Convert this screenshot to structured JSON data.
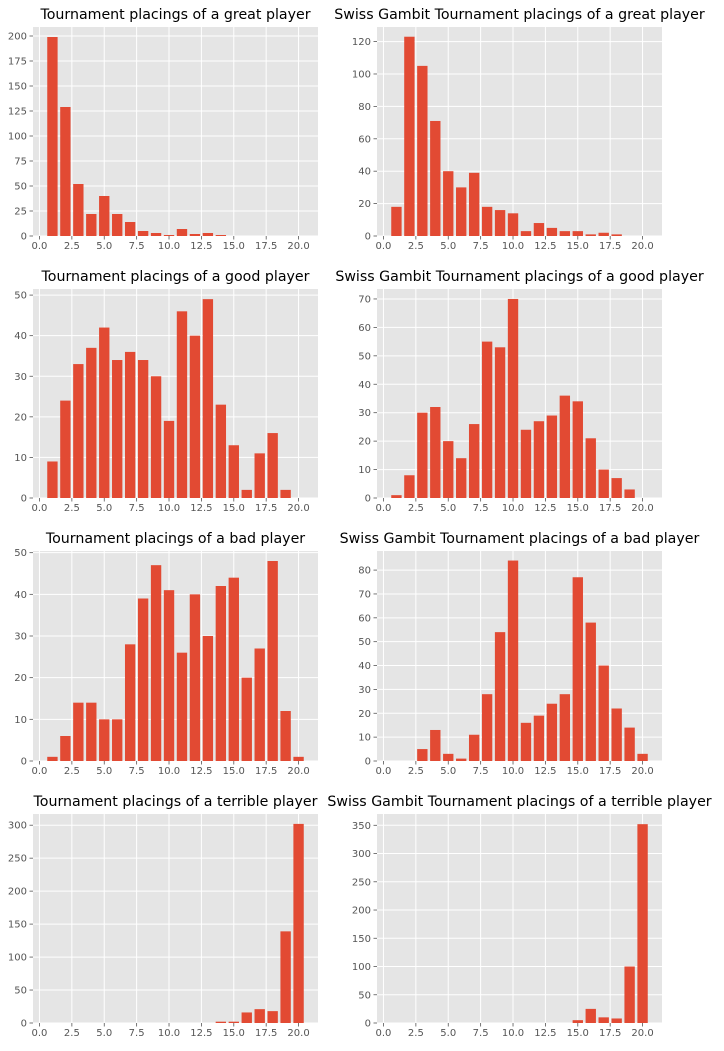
{
  "style": {
    "plot_bg": "#e5e5e5",
    "grid": "#ffffff",
    "bar": "#e24a33",
    "tick_text": "#555555",
    "title_text": "#000000"
  },
  "chart_data": [
    {
      "type": "bar",
      "title": "Tournament placings of a great player",
      "x": [
        1,
        2,
        3,
        4,
        5,
        6,
        7,
        8,
        9,
        10,
        11,
        12,
        13,
        14,
        15,
        16,
        17,
        18,
        19,
        20
      ],
      "values": [
        199,
        129,
        52,
        22,
        40,
        22,
        14,
        5,
        3,
        1,
        7,
        2,
        3,
        1,
        0,
        0,
        0,
        0,
        0,
        0
      ],
      "xlim": [
        -0.5,
        21.5
      ],
      "ylim": [
        0,
        209
      ],
      "xticks": [
        0,
        2.5,
        5,
        7.5,
        10,
        12.5,
        15,
        17.5,
        20
      ],
      "xtick_labels": [
        "0.0",
        "2.5",
        "5.0",
        "7.5",
        "10.0",
        "12.5",
        "15.0",
        "17.5",
        "20.0"
      ],
      "yticks": [
        0,
        25,
        50,
        75,
        100,
        125,
        150,
        175,
        200
      ],
      "ytick_labels": [
        "0",
        "25",
        "50",
        "75",
        "100",
        "125",
        "150",
        "175",
        "200"
      ],
      "grid": true
    },
    {
      "type": "bar",
      "title": "Swiss Gambit Tournament placings of a great player",
      "x": [
        1,
        2,
        3,
        4,
        5,
        6,
        7,
        8,
        9,
        10,
        11,
        12,
        13,
        14,
        15,
        16,
        17,
        18,
        19,
        20
      ],
      "values": [
        18,
        123,
        105,
        71,
        40,
        30,
        39,
        18,
        16,
        14,
        3,
        8,
        5,
        3,
        3,
        1,
        2,
        1,
        0,
        0
      ],
      "xlim": [
        -0.5,
        21.5
      ],
      "ylim": [
        0,
        129
      ],
      "xticks": [
        0,
        2.5,
        5,
        7.5,
        10,
        12.5,
        15,
        17.5,
        20
      ],
      "xtick_labels": [
        "0.0",
        "2.5",
        "5.0",
        "7.5",
        "10.0",
        "12.5",
        "15.0",
        "17.5",
        "20.0"
      ],
      "yticks": [
        0,
        20,
        40,
        60,
        80,
        100,
        120
      ],
      "ytick_labels": [
        "0",
        "20",
        "40",
        "60",
        "80",
        "100",
        "120"
      ],
      "grid": true
    },
    {
      "type": "bar",
      "title": "Tournament placings of a good player",
      "x": [
        1,
        2,
        3,
        4,
        5,
        6,
        7,
        8,
        9,
        10,
        11,
        12,
        13,
        14,
        15,
        16,
        17,
        18,
        19,
        20
      ],
      "values": [
        9,
        24,
        33,
        37,
        42,
        34,
        36,
        34,
        30,
        19,
        46,
        40,
        49,
        23,
        13,
        2,
        11,
        16,
        2,
        0
      ],
      "xlim": [
        -0.5,
        21.5
      ],
      "ylim": [
        0,
        51.5
      ],
      "xticks": [
        0,
        2.5,
        5,
        7.5,
        10,
        12.5,
        15,
        17.5,
        20
      ],
      "xtick_labels": [
        "0.0",
        "2.5",
        "5.0",
        "7.5",
        "10.0",
        "12.5",
        "15.0",
        "17.5",
        "20.0"
      ],
      "yticks": [
        0,
        10,
        20,
        30,
        40,
        50
      ],
      "ytick_labels": [
        "0",
        "10",
        "20",
        "30",
        "40",
        "50"
      ],
      "grid": true
    },
    {
      "type": "bar",
      "title": "Swiss Gambit Tournament placings of a good player",
      "x": [
        1,
        2,
        3,
        4,
        5,
        6,
        7,
        8,
        9,
        10,
        11,
        12,
        13,
        14,
        15,
        16,
        17,
        18,
        19,
        20
      ],
      "values": [
        1,
        8,
        30,
        32,
        20,
        14,
        26,
        55,
        53,
        70,
        24,
        27,
        29,
        36,
        34,
        21,
        10,
        7,
        3,
        0
      ],
      "xlim": [
        -0.5,
        21.5
      ],
      "ylim": [
        0,
        73.5
      ],
      "xticks": [
        0,
        2.5,
        5,
        7.5,
        10,
        12.5,
        15,
        17.5,
        20
      ],
      "xtick_labels": [
        "0.0",
        "2.5",
        "5.0",
        "7.5",
        "10.0",
        "12.5",
        "15.0",
        "17.5",
        "20.0"
      ],
      "yticks": [
        0,
        10,
        20,
        30,
        40,
        50,
        60,
        70
      ],
      "ytick_labels": [
        "0",
        "10",
        "20",
        "30",
        "40",
        "50",
        "60",
        "70"
      ],
      "grid": true
    },
    {
      "type": "bar",
      "title": "Tournament placings of a bad player",
      "x": [
        1,
        2,
        3,
        4,
        5,
        6,
        7,
        8,
        9,
        10,
        11,
        12,
        13,
        14,
        15,
        16,
        17,
        18,
        19,
        20
      ],
      "values": [
        1,
        6,
        14,
        14,
        10,
        10,
        28,
        39,
        47,
        41,
        26,
        40,
        30,
        42,
        44,
        20,
        27,
        48,
        12,
        1
      ],
      "xlim": [
        -0.5,
        21.5
      ],
      "ylim": [
        0,
        50.4
      ],
      "xticks": [
        0,
        2.5,
        5,
        7.5,
        10,
        12.5,
        15,
        17.5,
        20
      ],
      "xtick_labels": [
        "0.0",
        "2.5",
        "5.0",
        "7.5",
        "10.0",
        "12.5",
        "15.0",
        "17.5",
        "20.0"
      ],
      "yticks": [
        0,
        10,
        20,
        30,
        40,
        50
      ],
      "ytick_labels": [
        "0",
        "10",
        "20",
        "30",
        "40",
        "50"
      ],
      "grid": true
    },
    {
      "type": "bar",
      "title": "Swiss Gambit Tournament placings of a bad player",
      "x": [
        1,
        2,
        3,
        4,
        5,
        6,
        7,
        8,
        9,
        10,
        11,
        12,
        13,
        14,
        15,
        16,
        17,
        18,
        19,
        20
      ],
      "values": [
        0,
        0,
        5,
        13,
        3,
        1,
        11,
        28,
        54,
        84,
        16,
        19,
        24,
        28,
        77,
        58,
        40,
        22,
        14,
        3
      ],
      "xlim": [
        -0.5,
        21.5
      ],
      "ylim": [
        0,
        88
      ],
      "xticks": [
        0,
        2.5,
        5,
        7.5,
        10,
        12.5,
        15,
        17.5,
        20
      ],
      "xtick_labels": [
        "0.0",
        "2.5",
        "5.0",
        "7.5",
        "10.0",
        "12.5",
        "15.0",
        "17.5",
        "20.0"
      ],
      "yticks": [
        0,
        10,
        20,
        30,
        40,
        50,
        60,
        70,
        80
      ],
      "ytick_labels": [
        "0",
        "10",
        "20",
        "30",
        "40",
        "50",
        "60",
        "70",
        "80"
      ],
      "grid": true
    },
    {
      "type": "bar",
      "title": "Tournament placings of a terrible player",
      "x": [
        1,
        2,
        3,
        4,
        5,
        6,
        7,
        8,
        9,
        10,
        11,
        12,
        13,
        14,
        15,
        16,
        17,
        18,
        19,
        20
      ],
      "values": [
        0,
        0,
        0,
        0,
        0,
        0,
        0,
        0,
        0,
        0,
        0,
        0,
        0,
        2,
        2,
        16,
        21,
        18,
        139,
        302
      ],
      "xlim": [
        -0.5,
        21.5
      ],
      "ylim": [
        0,
        317
      ],
      "xticks": [
        0,
        2.5,
        5,
        7.5,
        10,
        12.5,
        15,
        17.5,
        20
      ],
      "xtick_labels": [
        "0.0",
        "2.5",
        "5.0",
        "7.5",
        "10.0",
        "12.5",
        "15.0",
        "17.5",
        "20.0"
      ],
      "yticks": [
        0,
        50,
        100,
        150,
        200,
        250,
        300
      ],
      "ytick_labels": [
        "0",
        "50",
        "100",
        "150",
        "200",
        "250",
        "300"
      ],
      "grid": true
    },
    {
      "type": "bar",
      "title": "Swiss Gambit Tournament placings of a terrible player",
      "x": [
        1,
        2,
        3,
        4,
        5,
        6,
        7,
        8,
        9,
        10,
        11,
        12,
        13,
        14,
        15,
        16,
        17,
        18,
        19,
        20
      ],
      "values": [
        0,
        0,
        0,
        0,
        0,
        0,
        0,
        0,
        0,
        0,
        0,
        0,
        0,
        0,
        5,
        25,
        10,
        8,
        100,
        352
      ],
      "xlim": [
        -0.5,
        21.5
      ],
      "ylim": [
        0,
        370
      ],
      "xticks": [
        0,
        2.5,
        5,
        7.5,
        10,
        12.5,
        15,
        17.5,
        20
      ],
      "xtick_labels": [
        "0.0",
        "2.5",
        "5.0",
        "7.5",
        "10.0",
        "12.5",
        "15.0",
        "17.5",
        "20.0"
      ],
      "yticks": [
        0,
        50,
        100,
        150,
        200,
        250,
        300,
        350
      ],
      "ytick_labels": [
        "0",
        "50",
        "100",
        "150",
        "200",
        "250",
        "300",
        "350"
      ],
      "grid": true
    }
  ]
}
